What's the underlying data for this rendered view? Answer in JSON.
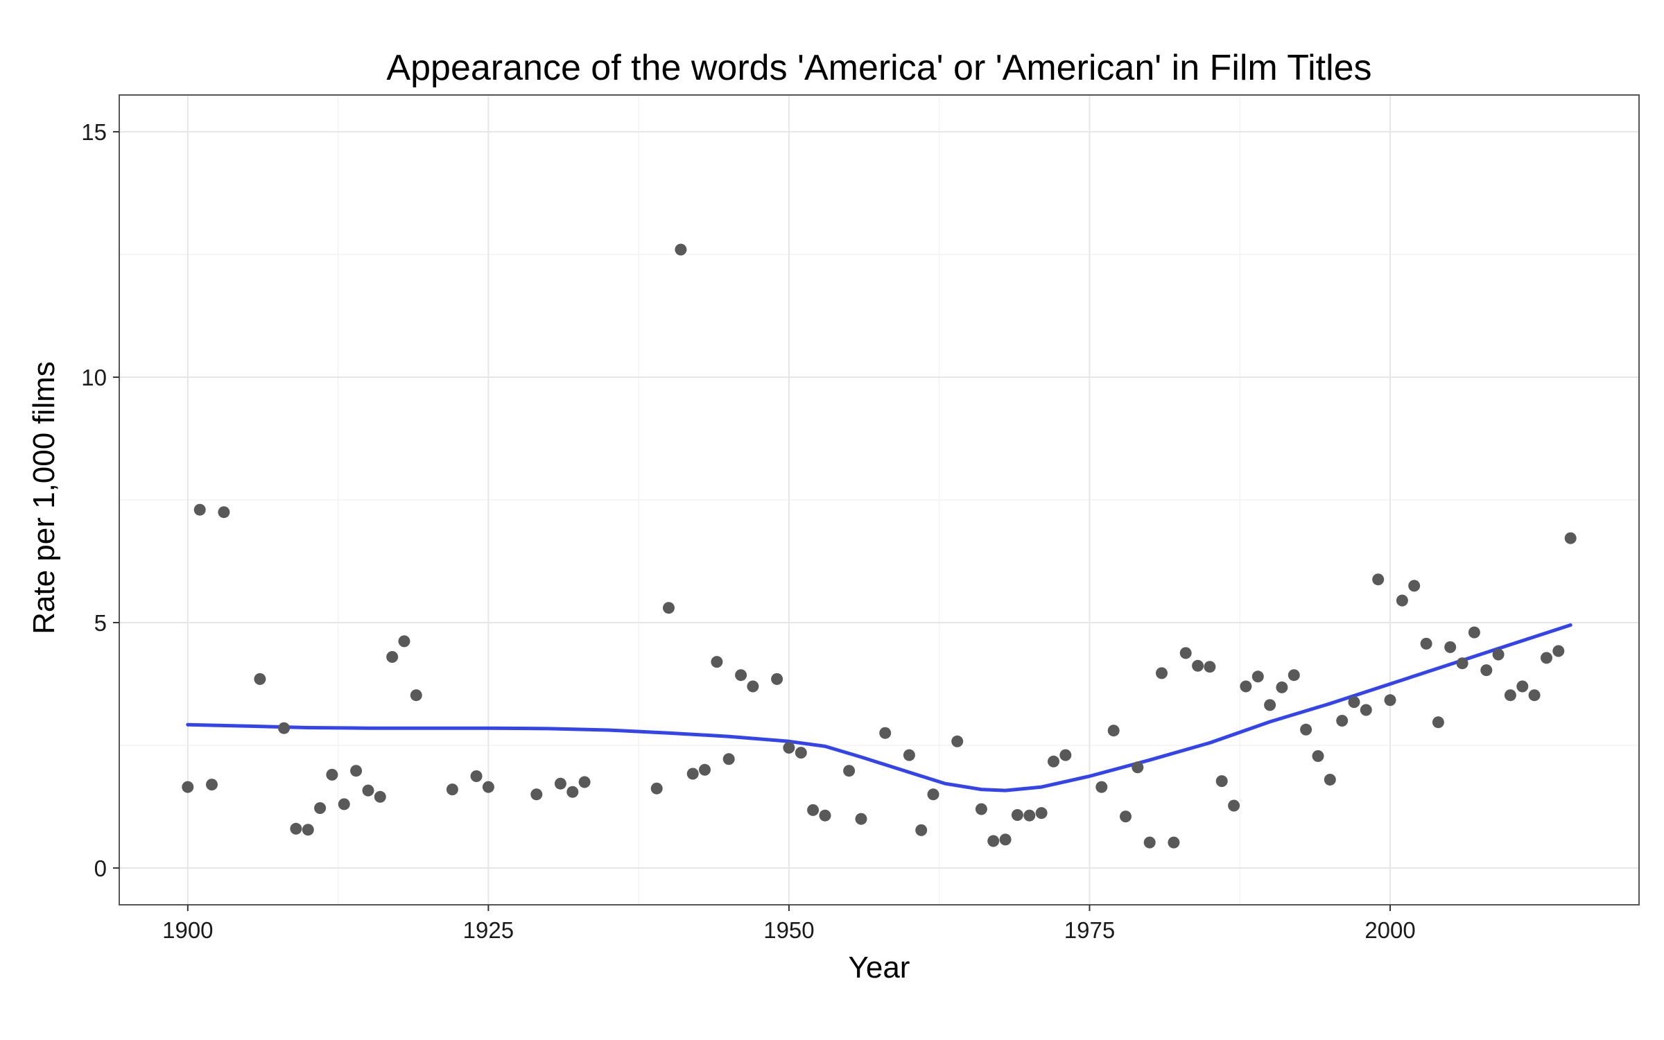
{
  "chart_data": {
    "type": "scatter",
    "title": "Appearance of the words 'America' or 'American' in Film Titles",
    "xlabel": "Year",
    "ylabel": "Rate per 1,000 films",
    "xlim": [
      1894.3,
      2020.7
    ],
    "ylim": [
      -0.75,
      15.75
    ],
    "x_ticks": [
      {
        "value": 1900,
        "label": "1900"
      },
      {
        "value": 1925,
        "label": "1925"
      },
      {
        "value": 1950,
        "label": "1950"
      },
      {
        "value": 1975,
        "label": "1975"
      },
      {
        "value": 2000,
        "label": "2000"
      }
    ],
    "y_ticks": [
      {
        "value": 0,
        "label": "0"
      },
      {
        "value": 5,
        "label": "5"
      },
      {
        "value": 10,
        "label": "10"
      },
      {
        "value": 15,
        "label": "15"
      }
    ],
    "grid": true,
    "points": [
      [
        1900,
        1.65
      ],
      [
        1901,
        7.3
      ],
      [
        1902,
        1.7
      ],
      [
        1903,
        7.25
      ],
      [
        1906,
        3.85
      ],
      [
        1908,
        2.85
      ],
      [
        1909,
        0.8
      ],
      [
        1910,
        0.78
      ],
      [
        1911,
        1.22
      ],
      [
        1912,
        1.9
      ],
      [
        1913,
        1.3
      ],
      [
        1914,
        1.98
      ],
      [
        1915,
        1.58
      ],
      [
        1916,
        1.45
      ],
      [
        1917,
        4.3
      ],
      [
        1918,
        4.62
      ],
      [
        1919,
        3.52
      ],
      [
        1922,
        1.6
      ],
      [
        1924,
        1.87
      ],
      [
        1925,
        1.65
      ],
      [
        1929,
        1.5
      ],
      [
        1931,
        1.72
      ],
      [
        1932,
        1.55
      ],
      [
        1933,
        1.75
      ],
      [
        1939,
        1.62
      ],
      [
        1940,
        5.3
      ],
      [
        1941,
        12.6
      ],
      [
        1942,
        1.92
      ],
      [
        1943,
        2.0
      ],
      [
        1944,
        4.2
      ],
      [
        1945,
        2.22
      ],
      [
        1946,
        3.93
      ],
      [
        1947,
        3.7
      ],
      [
        1949,
        3.85
      ],
      [
        1950,
        2.45
      ],
      [
        1951,
        2.35
      ],
      [
        1952,
        1.18
      ],
      [
        1953,
        1.07
      ],
      [
        1955,
        1.98
      ],
      [
        1956,
        1.0
      ],
      [
        1958,
        2.75
      ],
      [
        1960,
        2.3
      ],
      [
        1961,
        0.77
      ],
      [
        1962,
        1.5
      ],
      [
        1964,
        2.58
      ],
      [
        1966,
        1.2
      ],
      [
        1967,
        0.55
      ],
      [
        1968,
        0.58
      ],
      [
        1969,
        1.08
      ],
      [
        1970,
        1.07
      ],
      [
        1971,
        1.12
      ],
      [
        1972,
        2.17
      ],
      [
        1973,
        2.3
      ],
      [
        1976,
        1.65
      ],
      [
        1977,
        2.8
      ],
      [
        1978,
        1.05
      ],
      [
        1979,
        2.05
      ],
      [
        1980,
        0.52
      ],
      [
        1981,
        3.97
      ],
      [
        1982,
        0.52
      ],
      [
        1983,
        4.38
      ],
      [
        1984,
        4.12
      ],
      [
        1985,
        4.1
      ],
      [
        1986,
        1.77
      ],
      [
        1987,
        1.27
      ],
      [
        1988,
        3.7
      ],
      [
        1989,
        3.9
      ],
      [
        1990,
        3.32
      ],
      [
        1991,
        3.68
      ],
      [
        1992,
        3.93
      ],
      [
        1993,
        2.82
      ],
      [
        1994,
        2.28
      ],
      [
        1995,
        1.8
      ],
      [
        1996,
        3.0
      ],
      [
        1997,
        3.38
      ],
      [
        1998,
        3.22
      ],
      [
        1999,
        5.88
      ],
      [
        2000,
        3.42
      ],
      [
        2001,
        5.45
      ],
      [
        2002,
        5.75
      ],
      [
        2003,
        4.57
      ],
      [
        2004,
        2.97
      ],
      [
        2005,
        4.5
      ],
      [
        2006,
        4.17
      ],
      [
        2007,
        4.8
      ],
      [
        2008,
        4.03
      ],
      [
        2009,
        4.35
      ],
      [
        2010,
        3.52
      ],
      [
        2011,
        3.7
      ],
      [
        2012,
        3.52
      ],
      [
        2013,
        4.28
      ],
      [
        2014,
        4.42
      ],
      [
        2015,
        6.72
      ]
    ],
    "trend_line": [
      [
        1900,
        2.92
      ],
      [
        1905,
        2.89
      ],
      [
        1910,
        2.86
      ],
      [
        1915,
        2.85
      ],
      [
        1920,
        2.85
      ],
      [
        1925,
        2.85
      ],
      [
        1930,
        2.84
      ],
      [
        1935,
        2.81
      ],
      [
        1940,
        2.75
      ],
      [
        1945,
        2.68
      ],
      [
        1950,
        2.58
      ],
      [
        1953,
        2.48
      ],
      [
        1956,
        2.26
      ],
      [
        1960,
        1.95
      ],
      [
        1963,
        1.72
      ],
      [
        1966,
        1.6
      ],
      [
        1968,
        1.58
      ],
      [
        1971,
        1.65
      ],
      [
        1975,
        1.87
      ],
      [
        1980,
        2.2
      ],
      [
        1985,
        2.55
      ],
      [
        1990,
        2.98
      ],
      [
        1995,
        3.35
      ],
      [
        2000,
        3.75
      ],
      [
        2005,
        4.15
      ],
      [
        2010,
        4.55
      ],
      [
        2015,
        4.95
      ]
    ],
    "colors": {
      "point": "#595959",
      "trend": "#3344ee",
      "grid_major": "#e6e6e6",
      "grid_minor": "#f3f3f3",
      "border": "#555555",
      "tick": "#333333"
    }
  }
}
